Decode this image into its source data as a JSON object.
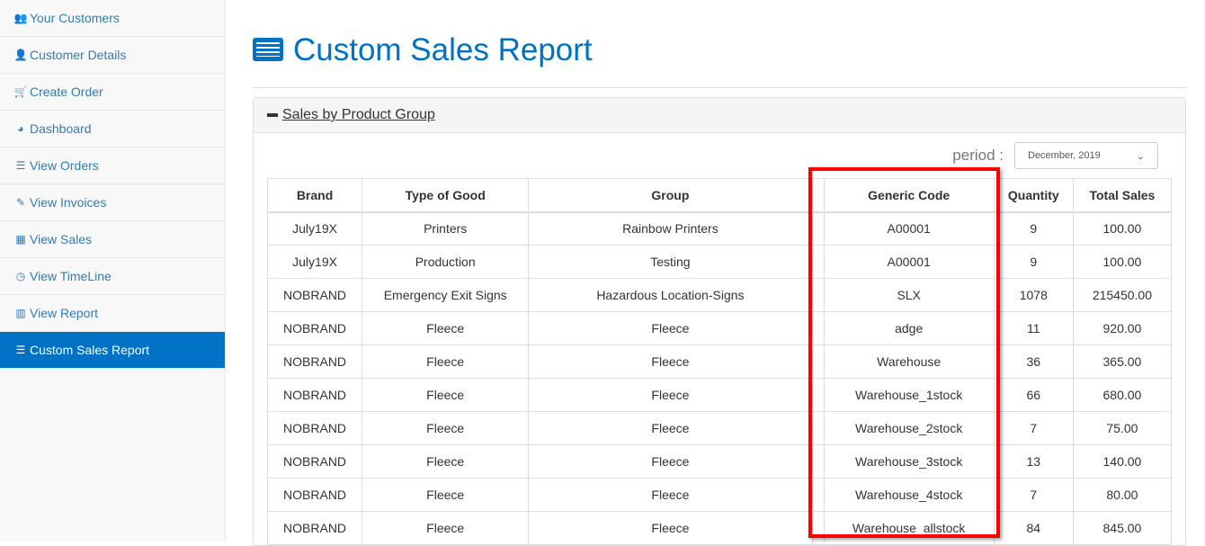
{
  "sidebar": {
    "items": [
      {
        "label": "Your Customers",
        "icon": "users-icon",
        "glyph": "👥"
      },
      {
        "label": "Customer Details",
        "icon": "user-icon",
        "glyph": "👤"
      },
      {
        "label": "Create Order",
        "icon": "cart-icon",
        "glyph": "🛒"
      },
      {
        "label": "Dashboard",
        "icon": "dashboard-icon",
        "glyph": "◕"
      },
      {
        "label": "View Orders",
        "icon": "list-icon",
        "glyph": "☰"
      },
      {
        "label": "View Invoices",
        "icon": "edit-icon",
        "glyph": "✎"
      },
      {
        "label": "View Sales",
        "icon": "table-icon",
        "glyph": "▦"
      },
      {
        "label": "View TimeLine",
        "icon": "clock-icon",
        "glyph": "◷"
      },
      {
        "label": "View Report",
        "icon": "bar-chart-icon",
        "glyph": "▥"
      },
      {
        "label": "Custom Sales Report",
        "icon": "list-icon",
        "glyph": "☰",
        "active": true
      }
    ]
  },
  "page": {
    "title": "Custom Sales Report"
  },
  "panel": {
    "title": "Sales by Product Group",
    "period_label": "period :",
    "period_value": "December, 2019"
  },
  "table": {
    "headers": [
      "Brand",
      "Type of Good",
      "Group",
      "",
      "Generic Code",
      "Quantity",
      "Total Sales"
    ],
    "rows": [
      [
        "July19X",
        "Printers",
        "Rainbow Printers",
        "",
        "A00001",
        "9",
        "100.00"
      ],
      [
        "July19X",
        "Production",
        "Testing",
        "",
        "A00001",
        "9",
        "100.00"
      ],
      [
        "NOBRAND",
        "Emergency Exit Signs",
        "Hazardous Location-Signs",
        "",
        "SLX",
        "1078",
        "215450.00"
      ],
      [
        "NOBRAND",
        "Fleece",
        "Fleece",
        "",
        "adge",
        "11",
        "920.00"
      ],
      [
        "NOBRAND",
        "Fleece",
        "Fleece",
        "",
        "Warehouse",
        "36",
        "365.00"
      ],
      [
        "NOBRAND",
        "Fleece",
        "Fleece",
        "",
        "Warehouse_1stock",
        "66",
        "680.00"
      ],
      [
        "NOBRAND",
        "Fleece",
        "Fleece",
        "",
        "Warehouse_2stock",
        "7",
        "75.00"
      ],
      [
        "NOBRAND",
        "Fleece",
        "Fleece",
        "",
        "Warehouse_3stock",
        "13",
        "140.00"
      ],
      [
        "NOBRAND",
        "Fleece",
        "Fleece",
        "",
        "Warehouse_4stock",
        "7",
        "80.00"
      ],
      [
        "NOBRAND",
        "Fleece",
        "Fleece",
        "",
        "Warehouse_allstock",
        "84",
        "845.00"
      ]
    ]
  },
  "colors": {
    "accent": "#0072c6",
    "highlight": "#ff0000"
  }
}
